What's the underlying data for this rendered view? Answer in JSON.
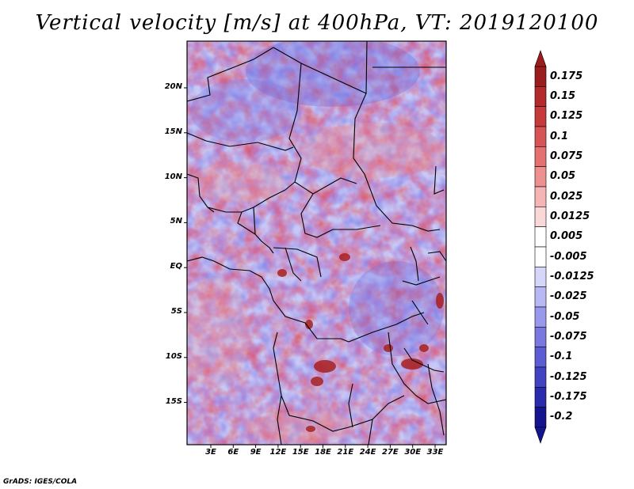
{
  "title": "Vertical velocity [m/s] at 400hPa, VT: 2019120100",
  "credit": "GrADS: IGES/COLA",
  "map": {
    "lat_labels": [
      "20N",
      "15N",
      "10N",
      "5N",
      "EQ",
      "5S",
      "10S",
      "15S"
    ],
    "lon_labels": [
      "3E",
      "6E",
      "9E",
      "12E",
      "15E",
      "18E",
      "21E",
      "24E",
      "27E",
      "30E",
      "33E"
    ]
  },
  "legend": {
    "labels": [
      "0.175",
      "0.15",
      "0.125",
      "0.1",
      "0.075",
      "0.05",
      "0.025",
      "0.0125",
      "0.005",
      "-0.005",
      "-0.0125",
      "-0.025",
      "-0.05",
      "-0.075",
      "-0.1",
      "-0.125",
      "-0.175",
      "-0.2"
    ],
    "colors": [
      "#9b1c1c",
      "#b22a2a",
      "#c63a3a",
      "#d85454",
      "#e47070",
      "#ee9090",
      "#f6b4b4",
      "#fbd8d8",
      "#ffffff",
      "#ffffff",
      "#d6d6fb",
      "#b8b8f4",
      "#9898ec",
      "#7878e0",
      "#5c5cd4",
      "#4242c2",
      "#2a2aac",
      "#141490"
    ]
  }
}
